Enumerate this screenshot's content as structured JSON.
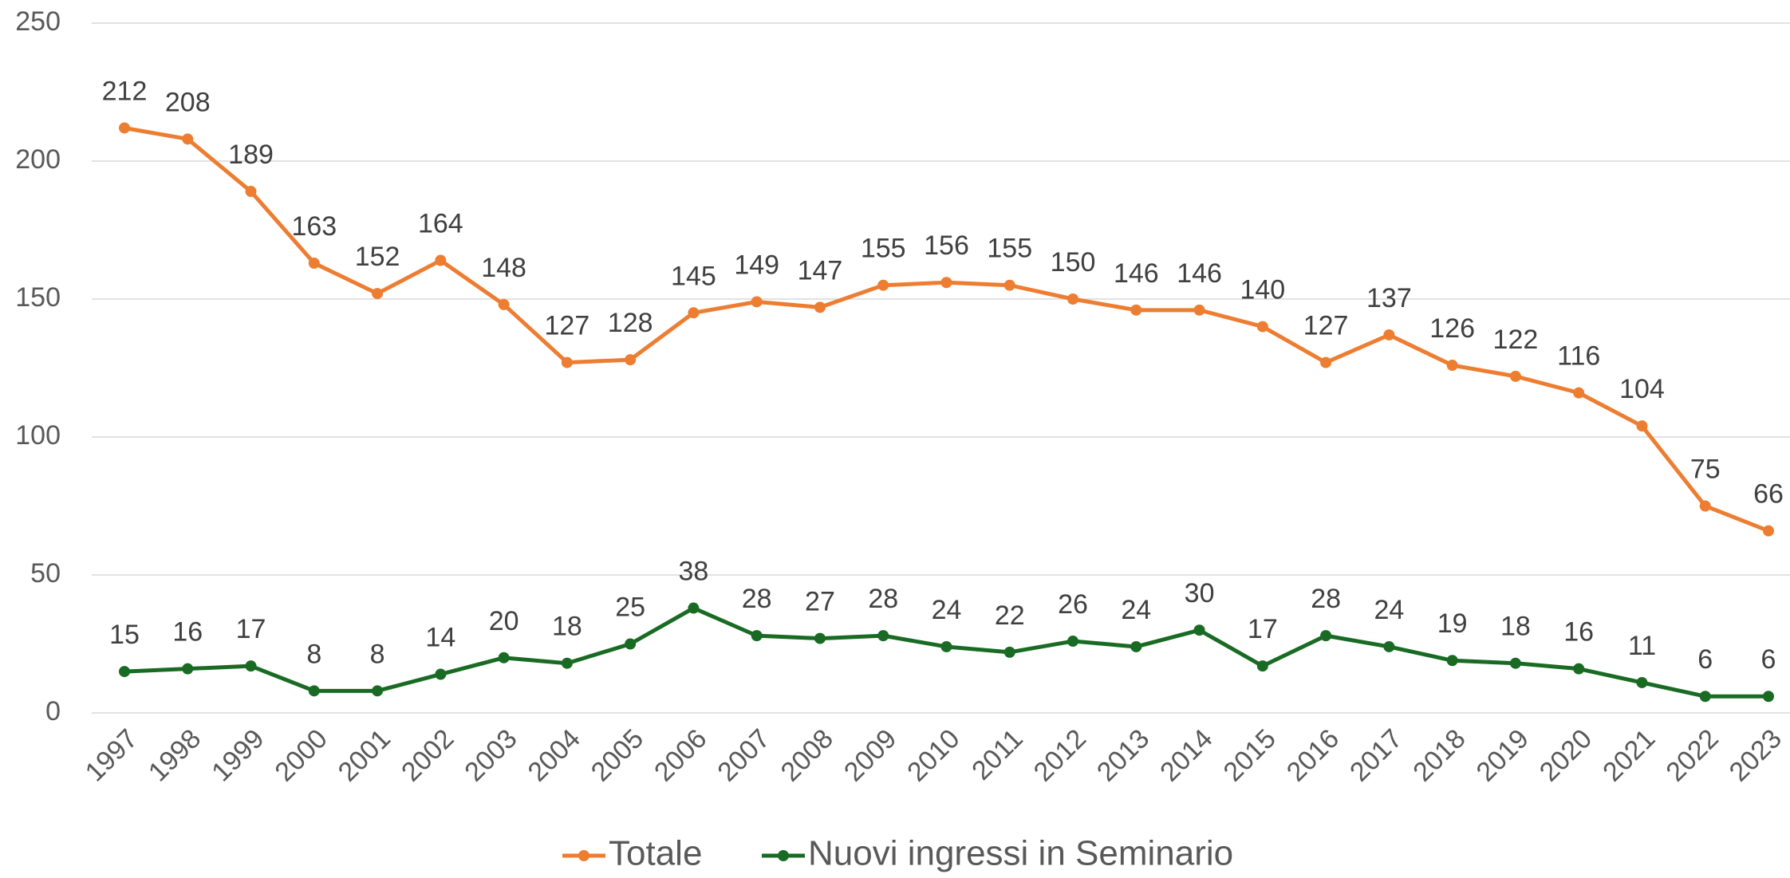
{
  "chart_data": {
    "type": "line",
    "categories": [
      "1997",
      "1998",
      "1999",
      "2000",
      "2001",
      "2002",
      "2003",
      "2004",
      "2005",
      "2006",
      "2007",
      "2008",
      "2009",
      "2010",
      "2011",
      "2012",
      "2013",
      "2014",
      "2015",
      "2016",
      "2017",
      "2018",
      "2019",
      "2020",
      "2021",
      "2022",
      "2023"
    ],
    "series": [
      {
        "name": "Totale",
        "color": "#ed7d31",
        "values": [
          212,
          208,
          189,
          163,
          152,
          164,
          148,
          127,
          128,
          145,
          149,
          147,
          155,
          156,
          155,
          150,
          146,
          146,
          140,
          127,
          137,
          126,
          122,
          116,
          104,
          75,
          66
        ]
      },
      {
        "name": "Nuovi ingressi in Seminario",
        "color": "#196b24",
        "values": [
          15,
          16,
          17,
          8,
          8,
          14,
          20,
          18,
          25,
          38,
          28,
          27,
          28,
          24,
          22,
          26,
          24,
          30,
          17,
          28,
          24,
          19,
          18,
          16,
          11,
          6,
          6
        ]
      }
    ],
    "ylim": [
      0,
      250
    ],
    "yticks": [
      0,
      50,
      100,
      150,
      200,
      250
    ],
    "grid": true,
    "legend": "bottom"
  }
}
